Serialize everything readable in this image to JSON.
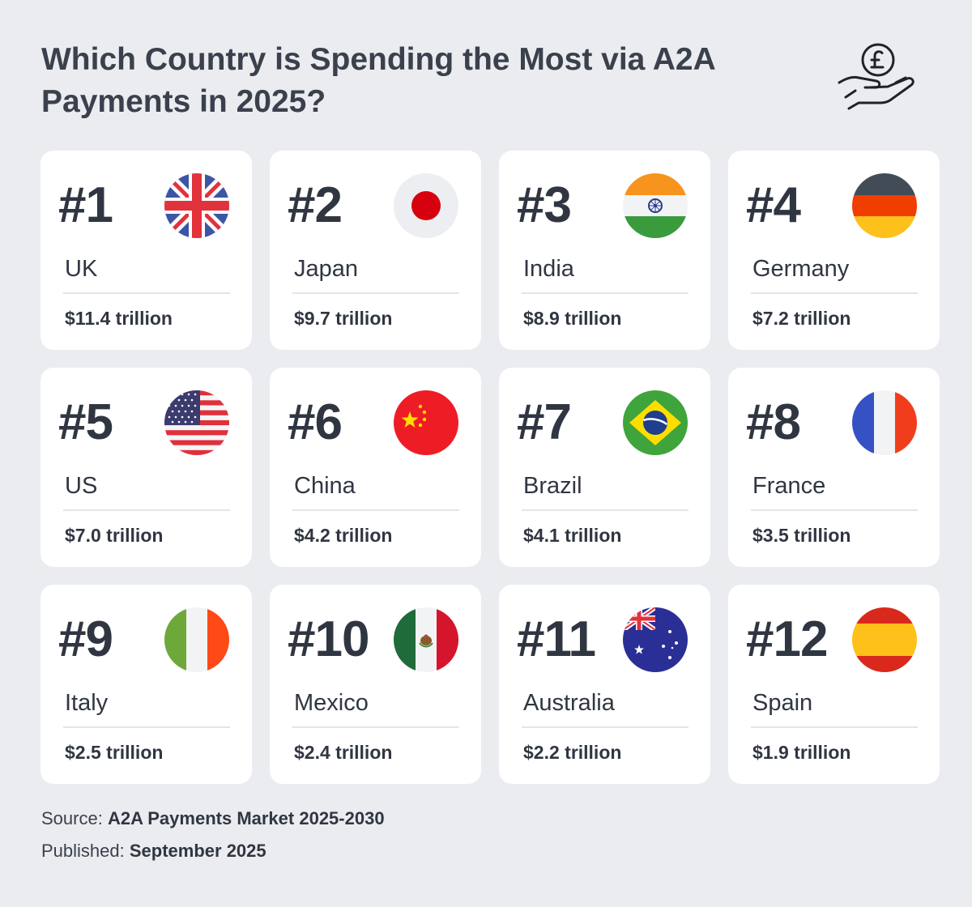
{
  "title": "Which Country is Spending the Most via A2A Payments in 2025?",
  "cards": [
    {
      "rank": "#1",
      "country": "UK",
      "value": "$11.4 trillion",
      "flag": "uk-flag-icon"
    },
    {
      "rank": "#2",
      "country": "Japan",
      "value": "$9.7 trillion",
      "flag": "japan-flag-icon"
    },
    {
      "rank": "#3",
      "country": "India",
      "value": "$8.9 trillion",
      "flag": "india-flag-icon"
    },
    {
      "rank": "#4",
      "country": "Germany",
      "value": "$7.2 trillion",
      "flag": "germany-flag-icon"
    },
    {
      "rank": "#5",
      "country": "US",
      "value": "$7.0 trillion",
      "flag": "us-flag-icon"
    },
    {
      "rank": "#6",
      "country": "China",
      "value": "$4.2 trillion",
      "flag": "china-flag-icon"
    },
    {
      "rank": "#7",
      "country": "Brazil",
      "value": "$4.1 trillion",
      "flag": "brazil-flag-icon"
    },
    {
      "rank": "#8",
      "country": "France",
      "value": "$3.5 trillion",
      "flag": "france-flag-icon"
    },
    {
      "rank": "#9",
      "country": "Italy",
      "value": "$2.5 trillion",
      "flag": "italy-flag-icon"
    },
    {
      "rank": "#10",
      "country": "Mexico",
      "value": "$2.4 trillion",
      "flag": "mexico-flag-icon"
    },
    {
      "rank": "#11",
      "country": "Australia",
      "value": "$2.2 trillion",
      "flag": "australia-flag-icon"
    },
    {
      "rank": "#12",
      "country": "Spain",
      "value": "$1.9 trillion",
      "flag": "spain-flag-icon"
    }
  ],
  "footer": {
    "source_label": "Source:",
    "source_value": "A2A Payments Market 2025-2030",
    "published_label": "Published:",
    "published_value": "September 2025"
  },
  "colors": {
    "background": "#eaecf0",
    "card": "#ffffff",
    "text": "#303641"
  }
}
